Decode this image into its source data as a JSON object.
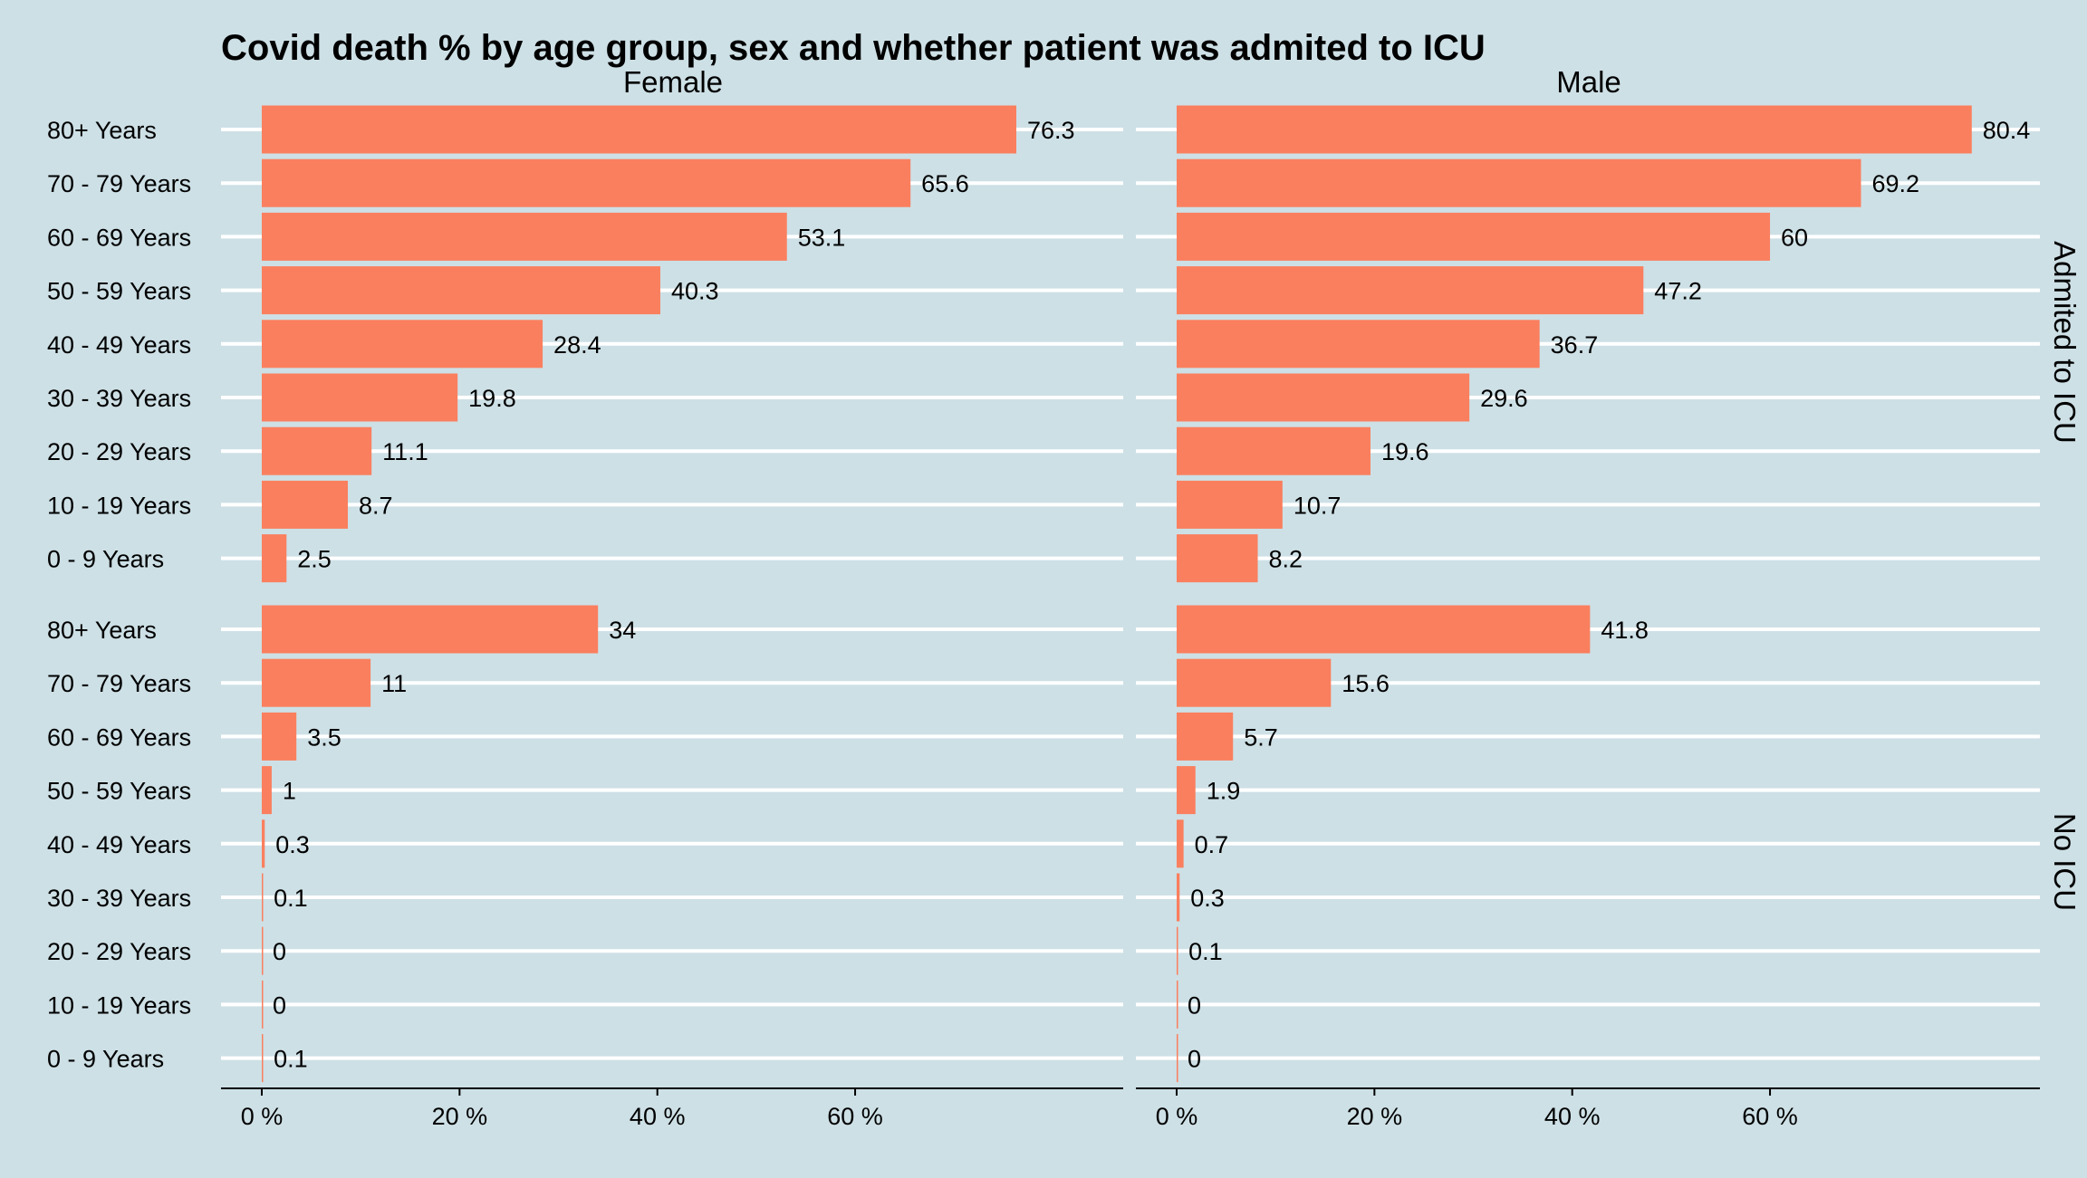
{
  "chart_data": {
    "type": "bar",
    "orientation": "horizontal",
    "title": "Covid death % by age group, sex and whether patient was admited to ICU",
    "xlabel": "",
    "ylabel": "",
    "xlim": [
      0,
      87
    ],
    "x_ticks": [
      0,
      20,
      40,
      60
    ],
    "x_tick_labels": [
      "0 %",
      "20 %",
      "40 %",
      "60 %"
    ],
    "grid": "horizontal lines at each category",
    "bar_color": "#fa7f5e",
    "background_color": "#cde0e6",
    "categories": [
      "80+ Years",
      "70 - 79 Years",
      "60 - 69 Years",
      "50 - 59 Years",
      "40 - 49 Years",
      "30 - 39 Years",
      "20 - 29 Years",
      "10 - 19 Years",
      "0 - 9 Years"
    ],
    "columns": [
      "Female",
      "Male"
    ],
    "rows": [
      "Admited to ICU",
      "No ICU"
    ],
    "panels": [
      {
        "column": "Female",
        "row": "Admited to ICU",
        "values": [
          76.3,
          65.6,
          53.1,
          40.3,
          28.4,
          19.8,
          11.1,
          8.7,
          2.5
        ],
        "labels": [
          "76.3",
          "65.6",
          "53.1",
          "40.3",
          "28.4",
          "19.8",
          "11.1",
          "8.7",
          "2.5"
        ]
      },
      {
        "column": "Male",
        "row": "Admited to ICU",
        "values": [
          80.4,
          69.2,
          60,
          47.2,
          36.7,
          29.6,
          19.6,
          10.7,
          8.2
        ],
        "labels": [
          "80.4",
          "69.2",
          "60",
          "47.2",
          "36.7",
          "29.6",
          "19.6",
          "10.7",
          "8.2"
        ]
      },
      {
        "column": "Female",
        "row": "No ICU",
        "values": [
          34,
          11,
          3.5,
          1,
          0.3,
          0.1,
          0,
          0,
          0.1
        ],
        "labels": [
          "34",
          "11",
          "3.5",
          "1",
          "0.3",
          "0.1",
          "0",
          "0",
          "0.1"
        ]
      },
      {
        "column": "Male",
        "row": "No ICU",
        "values": [
          41.8,
          15.6,
          5.7,
          1.9,
          0.7,
          0.3,
          0.1,
          0,
          0
        ],
        "labels": [
          "41.8",
          "15.6",
          "5.7",
          "1.9",
          "0.7",
          "0.3",
          "0.1",
          "0",
          "0"
        ]
      }
    ]
  }
}
